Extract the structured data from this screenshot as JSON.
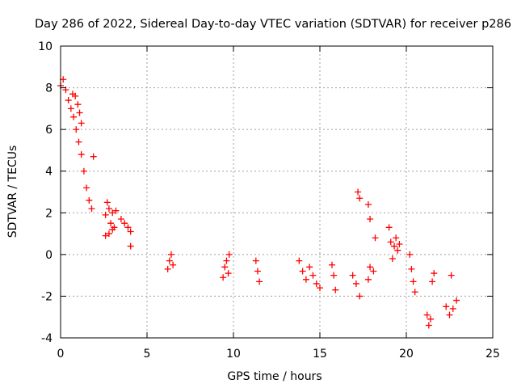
{
  "chart_data": {
    "type": "scatter",
    "title": "Day 286 of 2022, Sidereal Day-to-day VTEC variation (SDTVAR) for receiver p286",
    "xlabel": "GPS time / hours",
    "ylabel": "SDTVAR / TECUs",
    "xlim": [
      0,
      25
    ],
    "ylim": [
      -4,
      10
    ],
    "xticks": [
      0,
      5,
      10,
      15,
      20,
      25
    ],
    "yticks": [
      -4,
      -2,
      0,
      2,
      4,
      6,
      8,
      10
    ],
    "grid": true,
    "marker": "+",
    "series_color": "#ff0000",
    "segments": [
      {
        "x": [
          0.0,
          0.15,
          0.3,
          0.45,
          0.6,
          0.75,
          0.9,
          1.05,
          1.2,
          1.35,
          1.5,
          1.65,
          1.8,
          1.9
        ],
        "y": [
          8.1,
          8.4,
          7.9,
          7.4,
          7.0,
          6.6,
          6.0,
          5.4,
          4.8,
          4.0,
          3.2,
          2.6,
          2.2,
          4.7
        ]
      },
      {
        "x": [
          0.7,
          0.85,
          1.0,
          1.1,
          1.2
        ],
        "y": [
          7.7,
          7.6,
          7.2,
          6.8,
          6.3
        ]
      },
      {
        "x": [
          2.6,
          2.7,
          2.8,
          2.9,
          3.0,
          3.1,
          3.2
        ],
        "y": [
          1.9,
          2.5,
          2.2,
          1.5,
          2.0,
          1.3,
          2.1
        ]
      },
      {
        "x": [
          2.6,
          2.8,
          3.0
        ],
        "y": [
          0.9,
          1.0,
          1.2
        ]
      },
      {
        "x": [
          3.5,
          3.7,
          3.9,
          4.05
        ],
        "y": [
          1.7,
          1.5,
          1.3,
          1.1
        ]
      },
      {
        "x": [
          4.05
        ],
        "y": [
          0.4
        ]
      },
      {
        "x": [
          6.2,
          6.3,
          6.4,
          6.5
        ],
        "y": [
          -0.7,
          -0.3,
          0.0,
          -0.5
        ]
      },
      {
        "x": [
          9.4,
          9.5,
          9.6,
          9.7,
          9.75
        ],
        "y": [
          -1.1,
          -0.6,
          -0.3,
          -0.9,
          0.0
        ]
      },
      {
        "x": [
          11.3,
          11.4,
          11.5
        ],
        "y": [
          -0.3,
          -0.8,
          -1.3
        ]
      },
      {
        "x": [
          13.8,
          14.0,
          14.2,
          14.4,
          14.6,
          14.8,
          15.0
        ],
        "y": [
          -0.3,
          -0.8,
          -1.2,
          -0.6,
          -1.0,
          -1.4,
          -1.6
        ]
      },
      {
        "x": [
          15.7,
          15.8,
          15.9
        ],
        "y": [
          -0.5,
          -1.0,
          -1.7
        ]
      },
      {
        "x": [
          16.9,
          17.1,
          17.3
        ],
        "y": [
          -1.0,
          -1.4,
          -2.0
        ]
      },
      {
        "x": [
          17.2,
          17.3
        ],
        "y": [
          3.0,
          2.7
        ]
      },
      {
        "x": [
          17.8,
          17.9
        ],
        "y": [
          2.4,
          1.7
        ]
      },
      {
        "x": [
          17.8,
          17.9,
          18.1,
          18.2
        ],
        "y": [
          -1.2,
          -0.6,
          -0.8,
          0.8
        ]
      },
      {
        "x": [
          19.0,
          19.1,
          19.2,
          19.3,
          19.4,
          19.5,
          19.6
        ],
        "y": [
          1.3,
          0.6,
          -0.2,
          0.4,
          0.8,
          0.2,
          0.5
        ]
      },
      {
        "x": [
          20.2,
          20.3,
          20.4,
          20.5
        ],
        "y": [
          0.0,
          -0.7,
          -1.3,
          -1.8
        ]
      },
      {
        "x": [
          21.2,
          21.3,
          21.4,
          21.5,
          21.6
        ],
        "y": [
          -2.9,
          -3.4,
          -3.1,
          -1.3,
          -0.9
        ]
      },
      {
        "x": [
          22.3,
          22.5,
          22.7,
          22.9
        ],
        "y": [
          -2.5,
          -2.9,
          -2.6,
          -2.2
        ]
      },
      {
        "x": [
          22.6
        ],
        "y": [
          -1.0
        ]
      }
    ]
  }
}
